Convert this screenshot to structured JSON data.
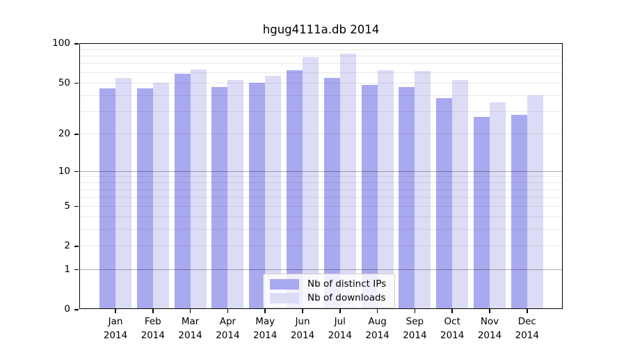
{
  "colors": {
    "distinct_ips": "#a9a9ef",
    "downloads": "#dcdcf7",
    "grid_minor": "#ebebeb",
    "grid_major": "#a9a9a9",
    "axis": "#000000",
    "background": "#ffffff",
    "legend_border": "#c9c9c9"
  },
  "chart_data": {
    "type": "bar",
    "title": "hgug4111a.db 2014",
    "categories": [
      "Jan",
      "Feb",
      "Mar",
      "Apr",
      "May",
      "Jun",
      "Jul",
      "Aug",
      "Sep",
      "Oct",
      "Nov",
      "Dec"
    ],
    "year": "2014",
    "series": [
      {
        "name": "Nb of distinct IPs",
        "color": "#a9a9ef",
        "values": [
          45,
          45,
          58,
          46,
          50,
          62,
          54,
          48,
          46,
          38,
          27,
          28
        ]
      },
      {
        "name": "Nb of downloads",
        "color": "#dcdcf7",
        "values": [
          54,
          50,
          63,
          52,
          56,
          78,
          83,
          62,
          61,
          52,
          35,
          40
        ]
      }
    ],
    "y_ticks": [
      100,
      50,
      20,
      10,
      5,
      2,
      1,
      0
    ],
    "y_scale": "log10(1+x)",
    "ylim": [
      0,
      100
    ],
    "grid": "horizontal, minor lines at 2-9 and 20-90, major lines at 1 and 10",
    "legend_position": "inside-bottom-center"
  }
}
